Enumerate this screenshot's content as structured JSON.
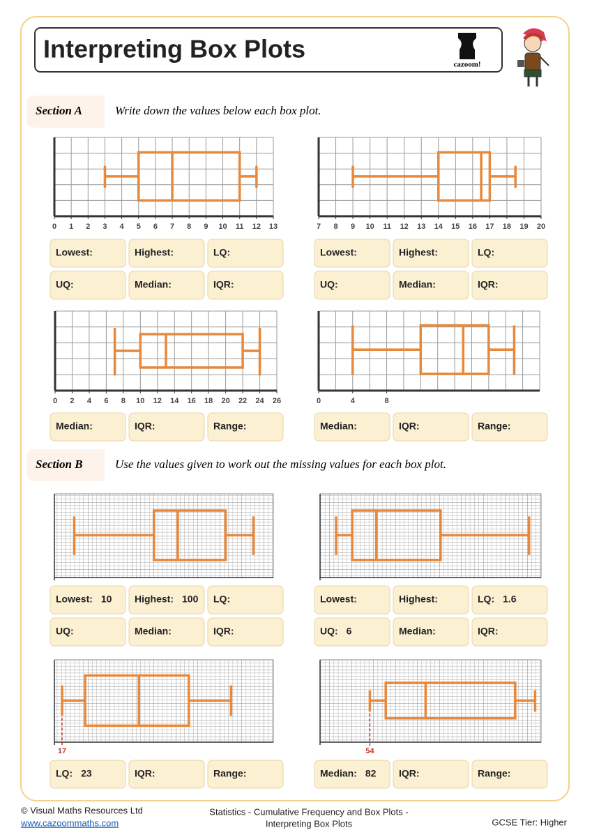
{
  "header": {
    "title": "Interpreting Box Plots",
    "logo": "cazoom!"
  },
  "section_a": {
    "label": "Section A",
    "instruction": "Write down the values below each box plot.",
    "plots": [
      {
        "xlim": [
          0,
          13
        ],
        "xticks": [
          0,
          1,
          2,
          3,
          4,
          5,
          6,
          7,
          8,
          9,
          10,
          11,
          12,
          13
        ],
        "grid_step": 1,
        "color": "#e8883a",
        "box": {
          "min": 3,
          "q1": 5,
          "median": 7,
          "q3": 11,
          "max": 12
        },
        "answers": [
          [
            {
              "label": "Lowest:"
            },
            {
              "label": "Highest:"
            },
            {
              "label": "LQ:"
            }
          ],
          [
            {
              "label": "UQ:"
            },
            {
              "label": "Median:"
            },
            {
              "label": "IQR:"
            }
          ]
        ]
      },
      {
        "xlim": [
          7,
          20
        ],
        "xticks": [
          7,
          8,
          9,
          10,
          11,
          12,
          13,
          14,
          15,
          16,
          17,
          18,
          19,
          20
        ],
        "grid_step": 1,
        "color": "#e8883a",
        "box": {
          "min": 9,
          "q1": 14,
          "median": 16.5,
          "q3": 17,
          "max": 18.5
        },
        "answers": [
          [
            {
              "label": "Lowest:"
            },
            {
              "label": "Highest:"
            },
            {
              "label": "LQ:"
            }
          ],
          [
            {
              "label": "UQ:"
            },
            {
              "label": "Median:"
            },
            {
              "label": "IQR:"
            }
          ]
        ]
      },
      {
        "xlim": [
          0,
          26
        ],
        "xticks": [
          0,
          2,
          4,
          6,
          8,
          10,
          12,
          14,
          16,
          18,
          20,
          22,
          24,
          26
        ],
        "grid_step": 2,
        "color": "#e8883a",
        "box": {
          "min": 7,
          "q1": 10,
          "median": 13,
          "q3": 22,
          "max": 24
        },
        "answers": [
          [
            {
              "label": "Median:"
            },
            {
              "label": "IQR:"
            },
            {
              "label": "Range:"
            }
          ]
        ]
      },
      {
        "xlim": [
          0,
          26
        ],
        "xticks": [
          0,
          4,
          8
        ],
        "grid_step": 2,
        "color": "#e8883a",
        "box": {
          "min": 4,
          "q1": 12,
          "median": 17,
          "q3": 20,
          "max": 23
        },
        "answers": [
          [
            {
              "label": "Median:"
            },
            {
              "label": "IQR:"
            },
            {
              "label": "Range:"
            }
          ]
        ]
      }
    ]
  },
  "section_b": {
    "label": "Section B",
    "instruction": "Use the values given to work out the missing values for each box plot.",
    "plots": [
      {
        "xlim": [
          0,
          110
        ],
        "color": "#e8883a",
        "box": {
          "min": 10,
          "q1": 50,
          "median": 62,
          "q3": 86,
          "max": 100
        },
        "answers": [
          [
            {
              "label": "Lowest:",
              "value": 10
            },
            {
              "label": "Highest:",
              "value": 100
            },
            {
              "label": "LQ:"
            }
          ],
          [
            {
              "label": "UQ:"
            },
            {
              "label": "Median:"
            },
            {
              "label": "IQR:"
            }
          ]
        ]
      },
      {
        "xlim": [
          0,
          11
        ],
        "color": "#e8883a",
        "box": {
          "min": 0.8,
          "q1": 1.6,
          "median": 2.8,
          "q3": 6,
          "max": 10.4
        },
        "answers": [
          [
            {
              "label": "Lowest:"
            },
            {
              "label": "Highest:"
            },
            {
              "label": "LQ:",
              "value": 1.6
            }
          ],
          [
            {
              "label": "UQ:",
              "value": 6
            },
            {
              "label": "Median:"
            },
            {
              "label": "IQR:"
            }
          ]
        ]
      },
      {
        "xlim": [
          15,
          72
        ],
        "marker": 17,
        "color": "#e8883a",
        "box": {
          "min": 17,
          "q1": 23,
          "median": 37,
          "q3": 50,
          "max": 61
        },
        "answers": [
          [
            {
              "label": "LQ:",
              "value": 23
            },
            {
              "label": "IQR:"
            },
            {
              "label": "Range:"
            }
          ]
        ]
      },
      {
        "xlim": [
          29,
          140
        ],
        "marker": 54,
        "color": "#e8883a",
        "box": {
          "min": 54,
          "q1": 62,
          "median": 82,
          "q3": 127,
          "max": 137
        },
        "answers": [
          [
            {
              "label": "Median:",
              "value": 82
            },
            {
              "label": "IQR:"
            },
            {
              "label": "Range:"
            }
          ]
        ]
      }
    ]
  },
  "footer": {
    "copyright": "© Visual Maths Resources Ltd",
    "url": "www.cazoommaths.com",
    "topic": [
      "Statistics - Cumulative Frequency and Box Plots -",
      "Interpreting Box Plots"
    ],
    "tier": "GCSE Tier: Higher"
  }
}
